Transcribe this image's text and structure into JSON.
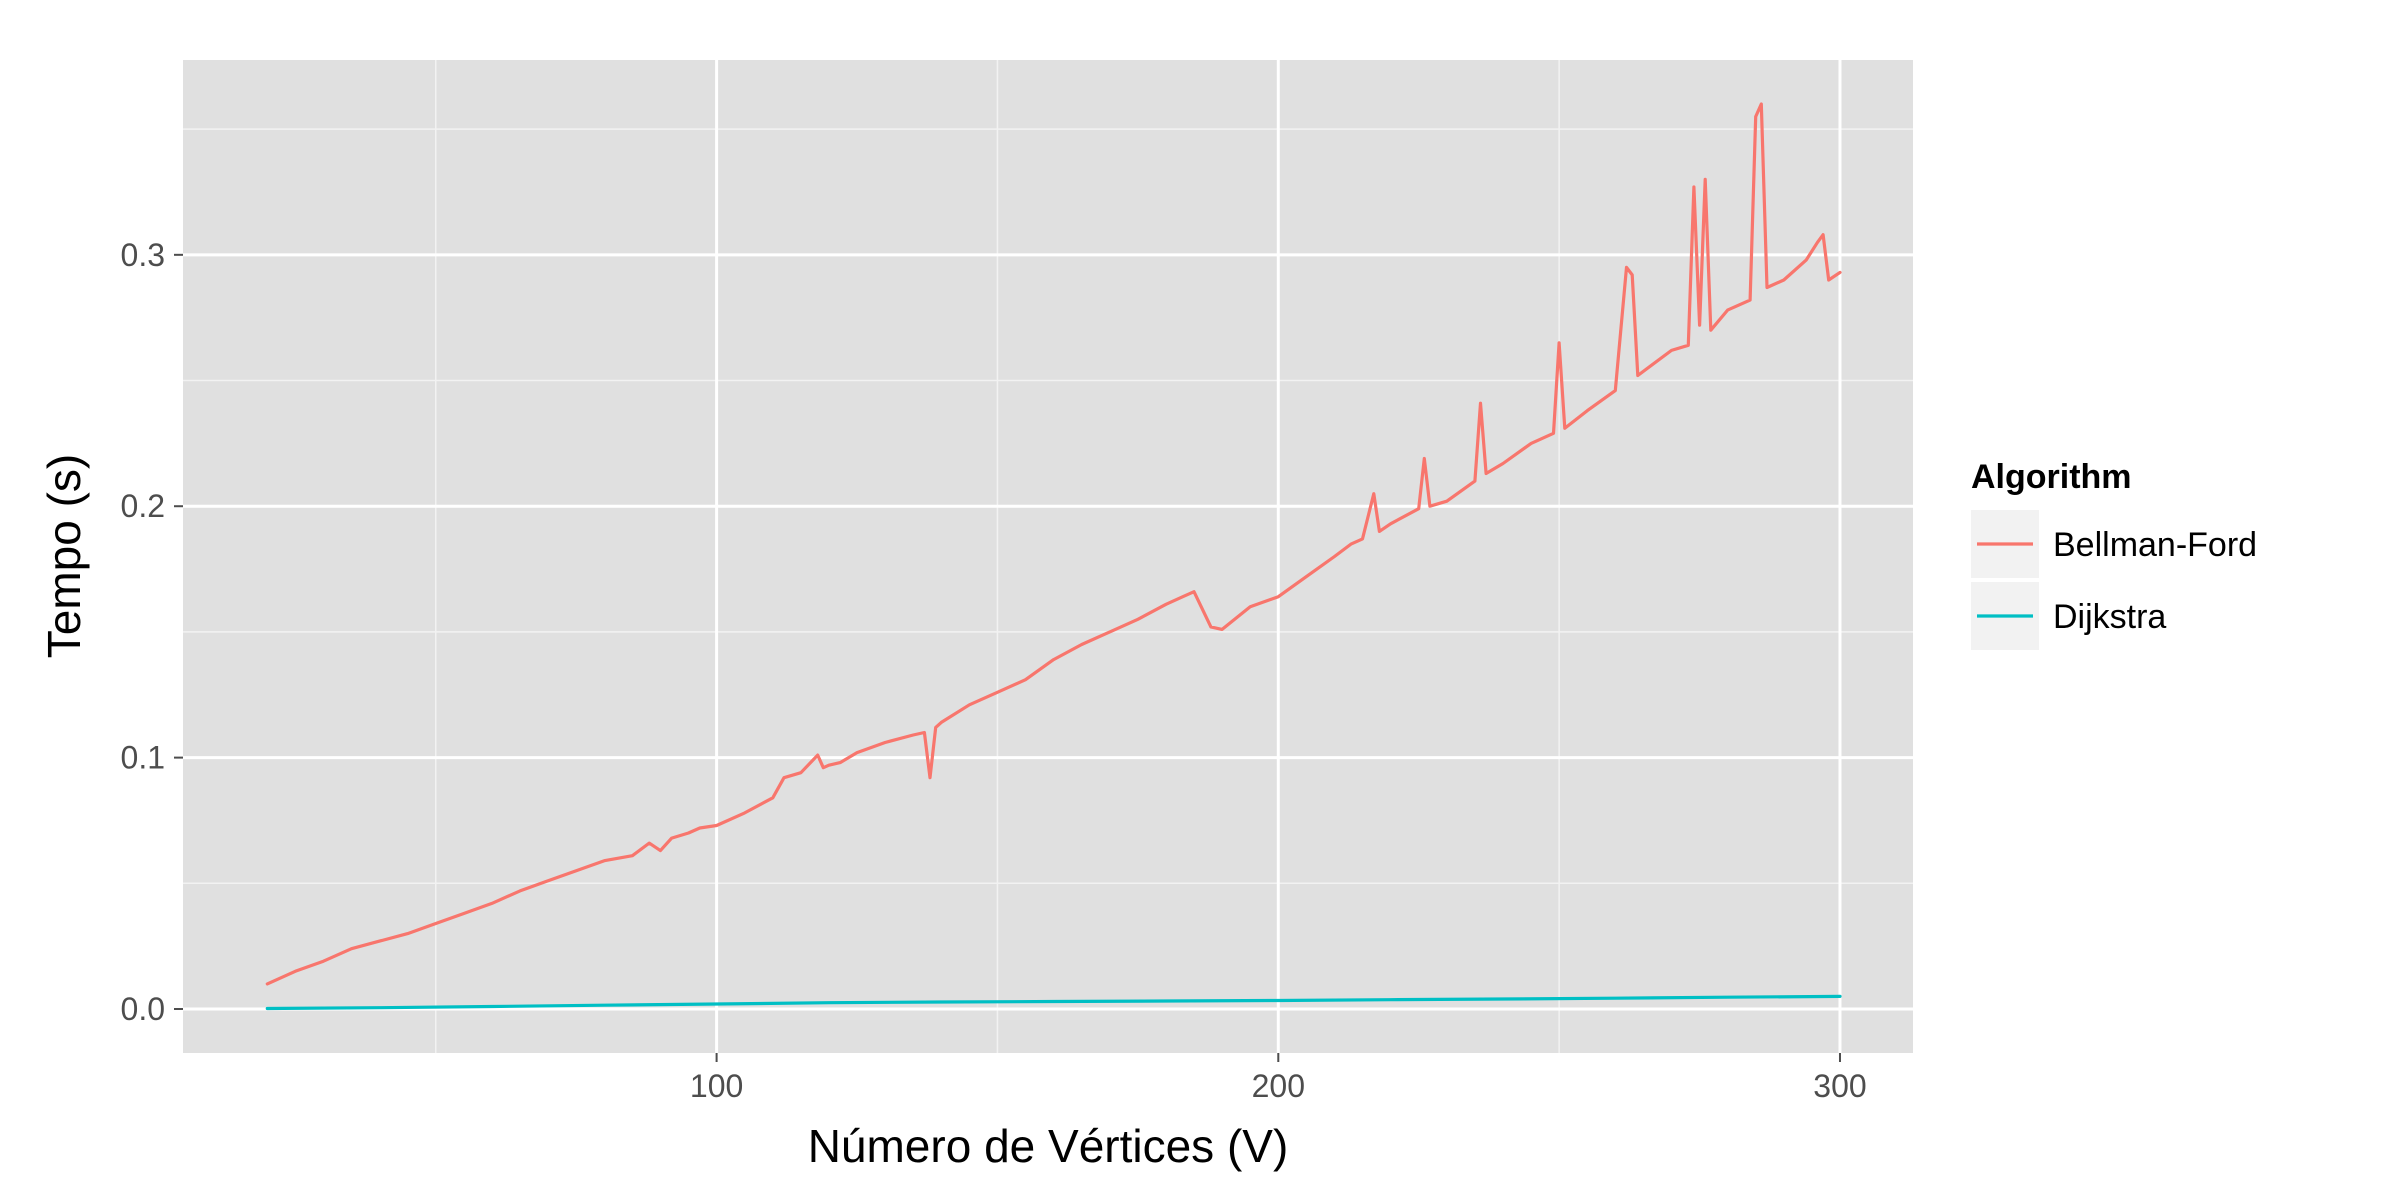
{
  "chart_data": {
    "type": "line",
    "title": "",
    "xlabel": "Número de Vértices (V)",
    "ylabel": "Tempo (s)",
    "xlim": [
      5,
      313
    ],
    "ylim": [
      -0.0175,
      0.3775
    ],
    "x_ticks": [
      100,
      200,
      300
    ],
    "x_tick_labels": [
      "100",
      "200",
      "300"
    ],
    "y_ticks": [
      0.0,
      0.1,
      0.2,
      0.3
    ],
    "y_tick_labels": [
      "0.0",
      "0.1",
      "0.2",
      "0.3"
    ],
    "grid": true,
    "background": "#e0e0e0",
    "legend": {
      "title": "Algorithm",
      "position": "right"
    },
    "series": [
      {
        "name": "Bellman-Ford",
        "color": "#f8766d",
        "x": [
          20,
          25,
          30,
          35,
          40,
          45,
          50,
          55,
          60,
          65,
          70,
          75,
          80,
          85,
          88,
          90,
          92,
          95,
          97,
          100,
          105,
          110,
          112,
          115,
          118,
          119,
          120,
          122,
          125,
          130,
          135,
          137,
          138,
          139,
          140,
          145,
          150,
          155,
          160,
          165,
          170,
          175,
          180,
          183,
          185,
          188,
          190,
          195,
          200,
          205,
          210,
          213,
          215,
          217,
          218,
          220,
          225,
          226,
          227,
          230,
          235,
          236,
          237,
          240,
          245,
          249,
          250,
          251,
          255,
          260,
          262,
          263,
          264,
          270,
          273,
          274,
          275,
          276,
          277,
          280,
          284,
          285,
          286,
          287,
          290,
          294,
          296,
          297,
          298,
          300
        ],
        "y": [
          0.01,
          0.015,
          0.019,
          0.024,
          0.027,
          0.03,
          0.034,
          0.038,
          0.042,
          0.047,
          0.051,
          0.055,
          0.059,
          0.061,
          0.066,
          0.063,
          0.068,
          0.07,
          0.072,
          0.073,
          0.078,
          0.084,
          0.092,
          0.094,
          0.101,
          0.096,
          0.097,
          0.098,
          0.102,
          0.106,
          0.109,
          0.11,
          0.092,
          0.112,
          0.114,
          0.121,
          0.126,
          0.131,
          0.139,
          0.145,
          0.15,
          0.155,
          0.161,
          0.164,
          0.166,
          0.152,
          0.151,
          0.16,
          0.164,
          0.172,
          0.18,
          0.185,
          0.187,
          0.205,
          0.19,
          0.193,
          0.199,
          0.219,
          0.2,
          0.202,
          0.21,
          0.241,
          0.213,
          0.217,
          0.225,
          0.229,
          0.265,
          0.231,
          0.238,
          0.246,
          0.295,
          0.292,
          0.252,
          0.262,
          0.264,
          0.327,
          0.272,
          0.33,
          0.27,
          0.278,
          0.282,
          0.355,
          0.36,
          0.287,
          0.29,
          0.298,
          0.305,
          0.308,
          0.29,
          0.293
        ]
      },
      {
        "name": "Dijkstra",
        "color": "#00bfc4",
        "x": [
          20,
          40,
          60,
          80,
          100,
          120,
          140,
          160,
          180,
          200,
          220,
          240,
          260,
          280,
          300
        ],
        "y": [
          0.0002,
          0.0005,
          0.001,
          0.0015,
          0.002,
          0.0025,
          0.0028,
          0.003,
          0.0032,
          0.0034,
          0.0037,
          0.004,
          0.0043,
          0.0047,
          0.005
        ]
      }
    ]
  }
}
